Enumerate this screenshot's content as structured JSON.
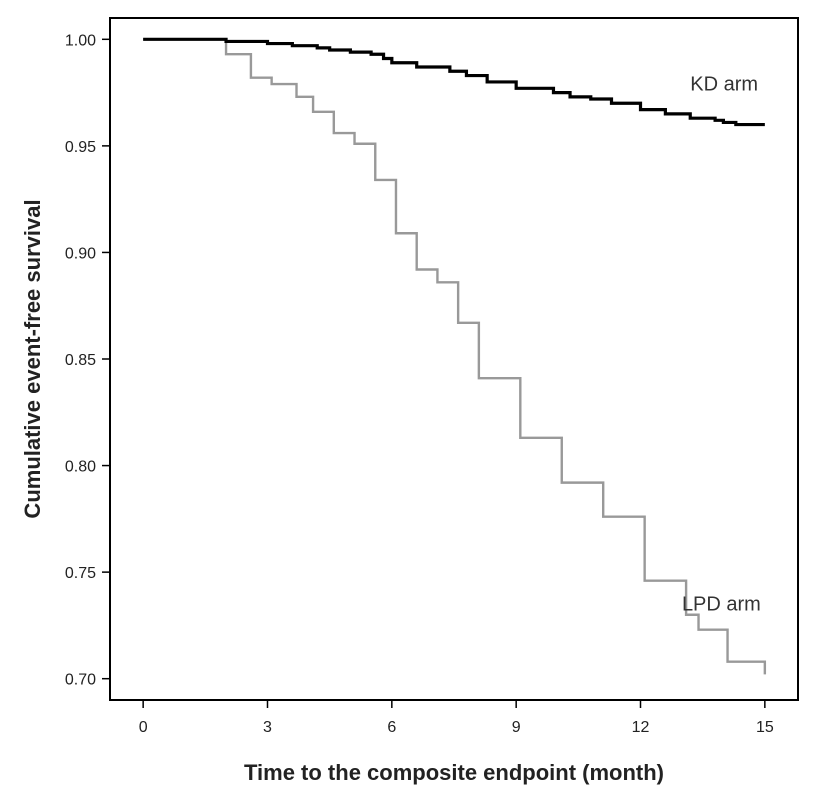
{
  "chart_data": {
    "type": "line",
    "step": true,
    "title": "",
    "xlabel": "Time to the composite endpoint (month)",
    "ylabel": "Cumulative event-free survival",
    "xlim": [
      -0.8,
      15.8
    ],
    "ylim": [
      0.69,
      1.01
    ],
    "xticks": [
      0,
      3,
      6,
      9,
      12,
      15
    ],
    "yticks": [
      0.7,
      0.75,
      0.8,
      0.85,
      0.9,
      0.95,
      1.0
    ],
    "ytick_labels": [
      "0.70",
      "0.75",
      "0.80",
      "0.85",
      "0.90",
      "0.95",
      "1.00"
    ],
    "grid": false,
    "legend": "none",
    "series": [
      {
        "name": "KD arm",
        "color": "#000000",
        "points": [
          [
            0,
            1.0
          ],
          [
            1.9,
            1.0
          ],
          [
            2.0,
            0.999
          ],
          [
            3.0,
            0.998
          ],
          [
            3.6,
            0.997
          ],
          [
            4.2,
            0.996
          ],
          [
            4.5,
            0.995
          ],
          [
            5.0,
            0.994
          ],
          [
            5.5,
            0.993
          ],
          [
            5.8,
            0.991
          ],
          [
            6.0,
            0.989
          ],
          [
            6.6,
            0.987
          ],
          [
            7.4,
            0.985
          ],
          [
            7.8,
            0.983
          ],
          [
            8.3,
            0.98
          ],
          [
            9.0,
            0.977
          ],
          [
            9.9,
            0.975
          ],
          [
            10.3,
            0.973
          ],
          [
            10.8,
            0.972
          ],
          [
            11.3,
            0.97
          ],
          [
            12.0,
            0.967
          ],
          [
            12.6,
            0.965
          ],
          [
            13.2,
            0.963
          ],
          [
            13.8,
            0.962
          ],
          [
            14.0,
            0.961
          ],
          [
            14.3,
            0.96
          ],
          [
            15.0,
            0.96
          ]
        ]
      },
      {
        "name": "LPD arm",
        "color": "#999999",
        "points": [
          [
            0,
            1.0
          ],
          [
            1.9,
            1.0
          ],
          [
            2.0,
            0.993
          ],
          [
            2.5,
            0.993
          ],
          [
            2.6,
            0.982
          ],
          [
            3.0,
            0.982
          ],
          [
            3.1,
            0.979
          ],
          [
            3.6,
            0.979
          ],
          [
            3.7,
            0.973
          ],
          [
            4.0,
            0.973
          ],
          [
            4.1,
            0.966
          ],
          [
            4.5,
            0.966
          ],
          [
            4.6,
            0.956
          ],
          [
            5.0,
            0.956
          ],
          [
            5.1,
            0.951
          ],
          [
            5.5,
            0.951
          ],
          [
            5.6,
            0.934
          ],
          [
            6.0,
            0.934
          ],
          [
            6.1,
            0.909
          ],
          [
            6.5,
            0.909
          ],
          [
            6.6,
            0.892
          ],
          [
            7.0,
            0.892
          ],
          [
            7.1,
            0.886
          ],
          [
            7.5,
            0.886
          ],
          [
            7.6,
            0.867
          ],
          [
            8.0,
            0.867
          ],
          [
            8.1,
            0.841
          ],
          [
            9.0,
            0.841
          ],
          [
            9.1,
            0.813
          ],
          [
            10.0,
            0.813
          ],
          [
            10.1,
            0.792
          ],
          [
            11.0,
            0.792
          ],
          [
            11.1,
            0.776
          ],
          [
            12.0,
            0.776
          ],
          [
            12.1,
            0.746
          ],
          [
            13.0,
            0.746
          ],
          [
            13.1,
            0.73
          ],
          [
            13.3,
            0.73
          ],
          [
            13.4,
            0.723
          ],
          [
            14.0,
            0.723
          ],
          [
            14.1,
            0.708
          ],
          [
            15.0,
            0.708
          ],
          [
            15.0,
            0.702
          ]
        ]
      }
    ]
  }
}
